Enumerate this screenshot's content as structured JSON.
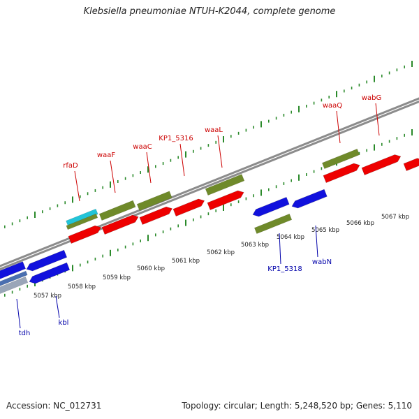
{
  "header": {
    "title": "Klebsiella pneumoniae NTUH-K2044, complete genome"
  },
  "footer": {
    "accession": "Accession: NC_012731",
    "summary": "Topology: circular; Length: 5,248,520 bp; Genes: 5,110"
  },
  "colors": {
    "forward_gene": "#ee0000",
    "reverse_gene": "#1111dd",
    "feature_green": "#6f8a2a",
    "feature_cyan": "#22c4d8",
    "backbone": "#8c8c8c",
    "tick": "#2a8a2a",
    "forward_label": "#cc0000",
    "reverse_label": "#0000aa"
  },
  "ticks": [
    {
      "label": "5057 kbp"
    },
    {
      "label": "5058 kbp"
    },
    {
      "label": "5059 kbp"
    },
    {
      "label": "5060 kbp"
    },
    {
      "label": "5061 kbp"
    },
    {
      "label": "5062 kbp"
    },
    {
      "label": "5063 kbp"
    },
    {
      "label": "5064 kbp"
    },
    {
      "label": "5065 kbp"
    },
    {
      "label": "5066 kbp"
    },
    {
      "label": "5067 kbp"
    }
  ],
  "forward_genes": [
    {
      "name": "rfaD"
    },
    {
      "name": "waaF"
    },
    {
      "name": "waaC"
    },
    {
      "name": "KP1_5316"
    },
    {
      "name": "waaL"
    },
    {
      "name": "waaQ"
    },
    {
      "name": "wabG"
    }
  ],
  "reverse_genes": [
    {
      "name": "tdh"
    },
    {
      "name": "kbl"
    },
    {
      "name": "KP1_5318"
    },
    {
      "name": "wabN"
    }
  ]
}
